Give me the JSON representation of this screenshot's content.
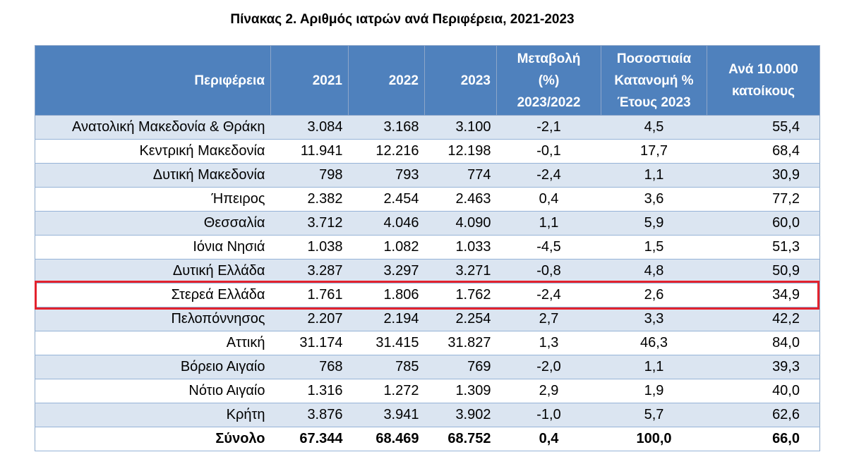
{
  "title": "Πίνακας 2. Αριθμός ιατρών ανά Περιφέρεια, 2021-2023",
  "headers": {
    "region": "Περιφέρεια",
    "y2021": "2021",
    "y2022": "2022",
    "y2023": "2023",
    "change_l1": "Μεταβολή",
    "change_l2": "(%)",
    "change_l3": "2023/2022",
    "share_l1": "Ποσοστιαία",
    "share_l2": "Κατανομή %",
    "share_l3": "Έτους 2023",
    "per_l1": "Ανά 10.000",
    "per_l2": "κατοίκους"
  },
  "rows": [
    {
      "region": "Ανατολική Μακεδονία & Θράκη",
      "y2021": "3.084",
      "y2022": "3.168",
      "y2023": "3.100",
      "change": "-2,1",
      "share": "4,5",
      "per": "55,4"
    },
    {
      "region": "Κεντρική Μακεδονία",
      "y2021": "11.941",
      "y2022": "12.216",
      "y2023": "12.198",
      "change": "-0,1",
      "share": "17,7",
      "per": "68,4"
    },
    {
      "region": "Δυτική Μακεδονία",
      "y2021": "798",
      "y2022": "793",
      "y2023": "774",
      "change": "-2,4",
      "share": "1,1",
      "per": "30,9"
    },
    {
      "region": "Ήπειρος",
      "y2021": "2.382",
      "y2022": "2.454",
      "y2023": "2.463",
      "change": "0,4",
      "share": "3,6",
      "per": "77,2"
    },
    {
      "region": "Θεσσαλία",
      "y2021": "3.712",
      "y2022": "4.046",
      "y2023": "4.090",
      "change": "1,1",
      "share": "5,9",
      "per": "60,0"
    },
    {
      "region": "Ιόνια Νησιά",
      "y2021": "1.038",
      "y2022": "1.082",
      "y2023": "1.033",
      "change": "-4,5",
      "share": "1,5",
      "per": "51,3"
    },
    {
      "region": "Δυτική Ελλάδα",
      "y2021": "3.287",
      "y2022": "3.297",
      "y2023": "3.271",
      "change": "-0,8",
      "share": "4,8",
      "per": "50,9"
    },
    {
      "region": "Στερεά Ελλάδα",
      "y2021": "1.761",
      "y2022": "1.806",
      "y2023": "1.762",
      "change": "-2,4",
      "share": "2,6",
      "per": "34,9"
    },
    {
      "region": "Πελοπόννησος",
      "y2021": "2.207",
      "y2022": "2.194",
      "y2023": "2.254",
      "change": "2,7",
      "share": "3,3",
      "per": "42,2"
    },
    {
      "region": "Αττική",
      "y2021": "31.174",
      "y2022": "31.415",
      "y2023": "31.827",
      "change": "1,3",
      "share": "46,3",
      "per": "84,0"
    },
    {
      "region": "Βόρειο Αιγαίο",
      "y2021": "768",
      "y2022": "785",
      "y2023": "769",
      "change": "-2,0",
      "share": "1,1",
      "per": "39,3"
    },
    {
      "region": "Νότιο Αιγαίο",
      "y2021": "1.316",
      "y2022": "1.272",
      "y2023": "1.309",
      "change": "2,9",
      "share": "1,9",
      "per": "40,0"
    },
    {
      "region": "Κρήτη",
      "y2021": "3.876",
      "y2022": "3.941",
      "y2023": "3.902",
      "change": "-1,0",
      "share": "5,7",
      "per": "62,6"
    }
  ],
  "total": {
    "region": "Σύνολο",
    "y2021": "67.344",
    "y2022": "68.469",
    "y2023": "68.752",
    "change": "0,4",
    "share": "100,0",
    "per": "66,0"
  },
  "highlighted_row": "Στερεά Ελλάδα",
  "colors": {
    "header_bg": "#4f81bd",
    "band_bg": "#dbe5f1",
    "highlight_border": "#e3222d"
  }
}
